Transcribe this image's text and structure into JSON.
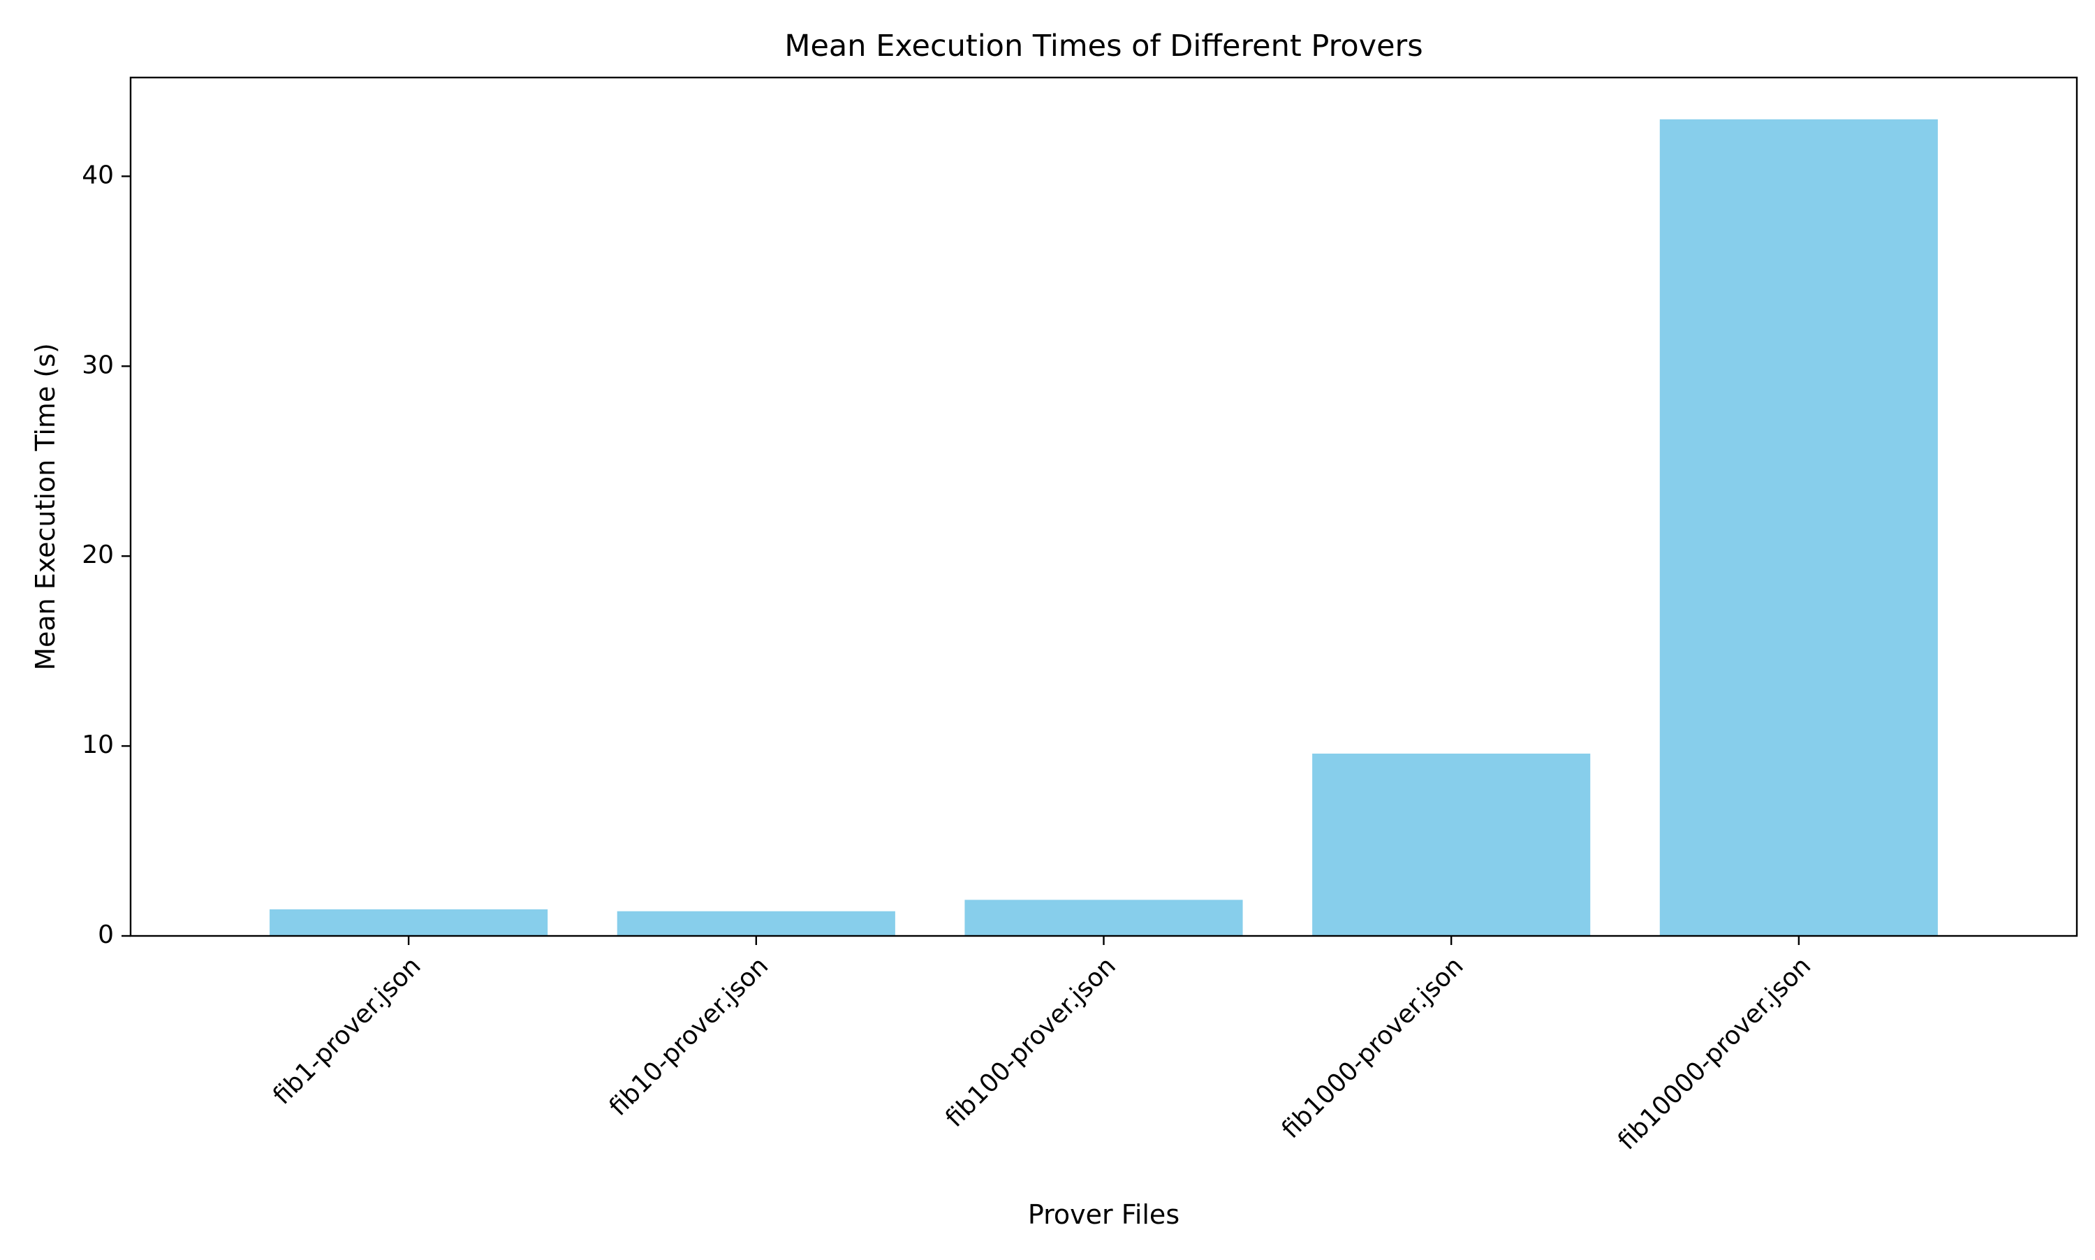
{
  "chart_data": {
    "type": "bar",
    "title": "Mean Execution Times of Different Provers",
    "xlabel": "Prover Files",
    "ylabel": "Mean Execution Time (s)",
    "categories": [
      "fib1-prover.json",
      "fib10-prover.json",
      "fib100-prover.json",
      "fib1000-prover.json",
      "fib10000-prover.json"
    ],
    "values": [
      1.4,
      1.3,
      1.9,
      9.6,
      43.0
    ],
    "ylim": [
      0,
      45.2
    ],
    "yticks": [
      0,
      10,
      20,
      30,
      40
    ],
    "bar_color": "#87ceeb",
    "grid": false,
    "legend": "none"
  }
}
